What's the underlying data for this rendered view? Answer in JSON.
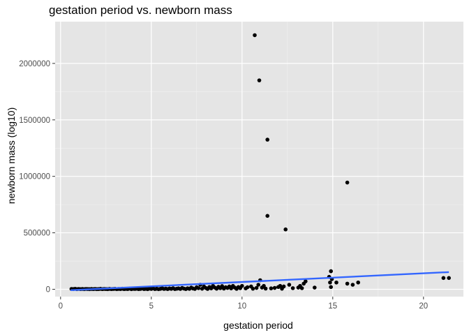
{
  "chart_data": {
    "type": "scatter",
    "title": "gestation period vs. newborn mass",
    "xlabel": "gestation period",
    "ylabel": "newborn mass (log10)",
    "xlim": [
      -0.3,
      22.2
    ],
    "ylim": [
      -65000,
      2370000
    ],
    "x_ticks": [
      0,
      5,
      10,
      15,
      20
    ],
    "y_ticks": [
      0,
      500000,
      1000000,
      1500000,
      2000000
    ],
    "x_tick_labels": [
      "0",
      "5",
      "10",
      "15",
      "20"
    ],
    "y_tick_labels": [
      "0",
      "500000",
      "1000000",
      "1500000",
      "2000000"
    ],
    "grid": true,
    "background": "#e5e5e5",
    "point_color": "#000000",
    "trend_color": "#3366ff",
    "trend_line": {
      "x": [
        0.55,
        21.4
      ],
      "y": [
        -8000,
        152000
      ]
    },
    "points": [
      [
        10.7,
        2250000
      ],
      [
        10.95,
        1850000
      ],
      [
        11.4,
        1325000
      ],
      [
        15.8,
        945000
      ],
      [
        11.4,
        650000
      ],
      [
        12.4,
        530000
      ],
      [
        0.6,
        3000
      ],
      [
        0.7,
        2000
      ],
      [
        0.8,
        4000
      ],
      [
        0.9,
        1000
      ],
      [
        1.0,
        3000
      ],
      [
        1.1,
        1500
      ],
      [
        1.2,
        2500
      ],
      [
        1.3,
        1000
      ],
      [
        1.4,
        3000
      ],
      [
        1.5,
        2000
      ],
      [
        1.6,
        1000
      ],
      [
        1.7,
        2500
      ],
      [
        1.8,
        1500
      ],
      [
        1.9,
        3000
      ],
      [
        2.0,
        1000
      ],
      [
        2.1,
        2000
      ],
      [
        2.2,
        4000
      ],
      [
        2.3,
        1500
      ],
      [
        2.4,
        3000
      ],
      [
        2.5,
        2000
      ],
      [
        2.6,
        1000
      ],
      [
        2.7,
        3500
      ],
      [
        2.8,
        1500
      ],
      [
        2.9,
        2500
      ],
      [
        3.0,
        4000
      ],
      [
        3.1,
        1000
      ],
      [
        3.2,
        3000
      ],
      [
        3.3,
        2000
      ],
      [
        3.4,
        5000
      ],
      [
        3.5,
        1500
      ],
      [
        3.6,
        3000
      ],
      [
        3.7,
        2000
      ],
      [
        3.8,
        6000
      ],
      [
        3.9,
        1000
      ],
      [
        4.0,
        4000
      ],
      [
        4.1,
        2500
      ],
      [
        4.2,
        5000
      ],
      [
        4.3,
        1500
      ],
      [
        4.4,
        3000
      ],
      [
        4.5,
        7000
      ],
      [
        4.6,
        2000
      ],
      [
        4.7,
        4000
      ],
      [
        4.8,
        1000
      ],
      [
        4.9,
        6000
      ],
      [
        5.0,
        3000
      ],
      [
        5.1,
        8000
      ],
      [
        5.2,
        2000
      ],
      [
        5.3,
        5000
      ],
      [
        5.4,
        1000
      ],
      [
        5.5,
        4000
      ],
      [
        5.6,
        9000
      ],
      [
        5.7,
        3000
      ],
      [
        5.8,
        6000
      ],
      [
        5.9,
        2000
      ],
      [
        6.0,
        7000
      ],
      [
        6.1,
        4000
      ],
      [
        6.2,
        10000
      ],
      [
        6.3,
        2000
      ],
      [
        6.4,
        5000
      ],
      [
        6.5,
        8000
      ],
      [
        6.6,
        3000
      ],
      [
        6.7,
        12000
      ],
      [
        6.8,
        6000
      ],
      [
        6.9,
        2000
      ],
      [
        7.0,
        9000
      ],
      [
        7.1,
        4000
      ],
      [
        7.2,
        15000
      ],
      [
        7.3,
        7000
      ],
      [
        7.4,
        3000
      ],
      [
        7.5,
        18000
      ],
      [
        7.6,
        10000
      ],
      [
        7.7,
        40000
      ],
      [
        7.8,
        5000
      ],
      [
        7.9,
        25000
      ],
      [
        8.0,
        12000
      ],
      [
        8.1,
        3000
      ],
      [
        8.2,
        20000
      ],
      [
        8.3,
        8000
      ],
      [
        8.4,
        30000
      ],
      [
        8.5,
        15000
      ],
      [
        8.6,
        5000
      ],
      [
        8.7,
        22000
      ],
      [
        8.8,
        10000
      ],
      [
        8.9,
        28000
      ],
      [
        9.0,
        6000
      ],
      [
        9.1,
        18000
      ],
      [
        9.2,
        12000
      ],
      [
        9.3,
        25000
      ],
      [
        9.4,
        8000
      ],
      [
        9.5,
        30000
      ],
      [
        9.6,
        15000
      ],
      [
        9.7,
        4000
      ],
      [
        9.8,
        20000
      ],
      [
        9.9,
        10000
      ],
      [
        10.0,
        30000
      ],
      [
        10.2,
        8000
      ],
      [
        10.3,
        18000
      ],
      [
        10.5,
        25000
      ],
      [
        10.6,
        5000
      ],
      [
        10.8,
        12000
      ],
      [
        10.9,
        40000
      ],
      [
        11.0,
        80000
      ],
      [
        11.1,
        15000
      ],
      [
        11.2,
        30000
      ],
      [
        11.3,
        6000
      ],
      [
        11.6,
        8000
      ],
      [
        11.8,
        12000
      ],
      [
        12.0,
        20000
      ],
      [
        12.1,
        30000
      ],
      [
        12.2,
        5000
      ],
      [
        12.3,
        25000
      ],
      [
        12.6,
        40000
      ],
      [
        12.8,
        10000
      ],
      [
        13.1,
        15000
      ],
      [
        13.2,
        30000
      ],
      [
        13.3,
        10000
      ],
      [
        13.4,
        50000
      ],
      [
        13.5,
        70000
      ],
      [
        14.0,
        15000
      ],
      [
        14.8,
        110000
      ],
      [
        14.85,
        60000
      ],
      [
        14.9,
        160000
      ],
      [
        14.95,
        90000
      ],
      [
        14.9,
        20000
      ],
      [
        15.2,
        60000
      ],
      [
        15.8,
        50000
      ],
      [
        16.1,
        40000
      ],
      [
        16.4,
        60000
      ],
      [
        21.1,
        100000
      ],
      [
        21.4,
        100000
      ]
    ]
  }
}
